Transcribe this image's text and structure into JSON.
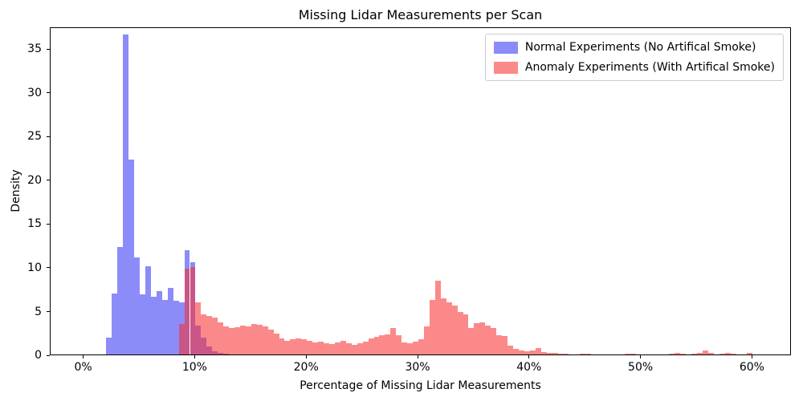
{
  "chart_data": {
    "type": "histogram",
    "title": "Missing Lidar Measurements per Scan",
    "xlabel": "Percentage of Missing Lidar Measurements",
    "ylabel": "Density",
    "xlim": [
      -3,
      63.5
    ],
    "ylim": [
      0,
      37.5
    ],
    "x_ticks": [
      0,
      10,
      20,
      30,
      40,
      50,
      60
    ],
    "x_tick_labels": [
      "0%",
      "10%",
      "20%",
      "30%",
      "40%",
      "50%",
      "60%"
    ],
    "y_ticks": [
      0,
      5,
      10,
      15,
      20,
      25,
      30,
      35
    ],
    "y_tick_labels": [
      "0",
      "5",
      "10",
      "15",
      "20",
      "25",
      "30",
      "35"
    ],
    "bin_width": 0.5,
    "grid": false,
    "legend_position": "upper right",
    "series": [
      {
        "name": "Normal Experiments (No Artifical Smoke)",
        "color": "rgba(50, 50, 245, 0.56)",
        "bins": [
          2.0,
          2.5,
          3.0,
          3.5,
          4.0,
          4.5,
          5.0,
          5.5,
          6.0,
          6.5,
          7.0,
          7.5,
          8.0,
          8.5,
          9.0,
          9.5,
          10.0,
          10.5,
          11.0,
          11.5,
          12.0,
          12.5
        ],
        "values": [
          1.9,
          7.0,
          12.3,
          36.6,
          22.3,
          11.1,
          6.9,
          10.1,
          6.6,
          7.2,
          6.2,
          7.6,
          6.1,
          6.0,
          11.9,
          10.5,
          3.3,
          1.9,
          0.9,
          0.4,
          0.2,
          0.1
        ]
      },
      {
        "name": "Anomaly Experiments (With Artifical Smoke)",
        "color": "rgba(250, 45, 45, 0.56)",
        "bins": [
          8.5,
          9.0,
          9.5,
          10.0,
          10.5,
          11.0,
          11.5,
          12.0,
          12.5,
          13.0,
          13.5,
          14.0,
          14.5,
          15.0,
          15.5,
          16.0,
          16.5,
          17.0,
          17.5,
          18.0,
          18.5,
          19.0,
          19.5,
          20.0,
          20.5,
          21.0,
          21.5,
          22.0,
          22.5,
          23.0,
          23.5,
          24.0,
          24.5,
          25.0,
          25.5,
          26.0,
          26.5,
          27.0,
          27.5,
          28.0,
          28.5,
          29.0,
          29.5,
          30.0,
          30.5,
          31.0,
          31.5,
          32.0,
          32.5,
          33.0,
          33.5,
          34.0,
          34.5,
          35.0,
          35.5,
          36.0,
          36.5,
          37.0,
          37.5,
          38.0,
          38.5,
          39.0,
          39.5,
          40.0,
          40.5,
          41.0,
          41.5,
          42.0,
          42.5,
          43.0,
          44.5,
          45.0,
          48.5,
          49.0,
          52.5,
          53.0,
          53.5,
          54.5,
          55.0,
          55.5,
          56.0,
          57.0,
          57.5,
          58.0,
          59.5
        ],
        "values": [
          3.5,
          9.8,
          10.0,
          6.0,
          4.6,
          4.4,
          4.2,
          3.7,
          3.2,
          3.0,
          3.1,
          3.3,
          3.2,
          3.5,
          3.4,
          3.2,
          2.8,
          2.4,
          1.8,
          1.6,
          1.7,
          1.8,
          1.7,
          1.6,
          1.4,
          1.5,
          1.3,
          1.2,
          1.4,
          1.6,
          1.3,
          1.1,
          1.3,
          1.5,
          1.8,
          2.0,
          2.2,
          2.3,
          3.0,
          2.2,
          1.4,
          1.3,
          1.5,
          1.7,
          3.2,
          6.2,
          8.4,
          6.4,
          6.0,
          5.6,
          4.9,
          4.6,
          3.0,
          3.6,
          3.7,
          3.3,
          3.0,
          2.2,
          2.1,
          1.0,
          0.6,
          0.5,
          0.4,
          0.5,
          0.7,
          0.3,
          0.2,
          0.15,
          0.1,
          0.05,
          0.05,
          0.05,
          0.05,
          0.05,
          0.1,
          0.15,
          0.1,
          0.1,
          0.2,
          0.45,
          0.2,
          0.1,
          0.15,
          0.1,
          0.15
        ]
      }
    ]
  }
}
